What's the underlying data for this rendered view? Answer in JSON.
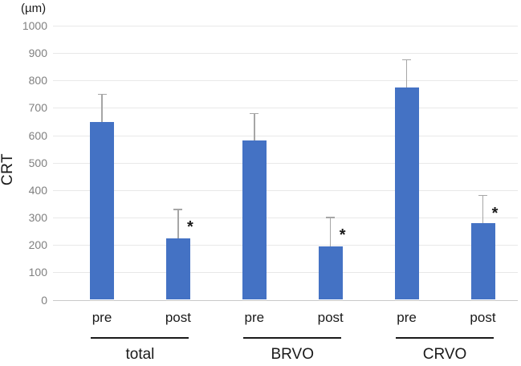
{
  "chart_data": {
    "type": "bar",
    "title": "",
    "unit": "(µm)",
    "ylabel": "CRT",
    "xlabel": "",
    "ylim": [
      0,
      1000
    ],
    "yticks": [
      0,
      100,
      200,
      300,
      400,
      500,
      600,
      700,
      800,
      900,
      1000
    ],
    "grid": true,
    "legend": false,
    "bar_color": "#4472C4",
    "error_bar_color": "#A6A6A6",
    "gridline_color": "#E8E8E8",
    "axis_line_color": "#C9C9C9",
    "tick_label_color": "#808080",
    "significance_marker": "*",
    "groups": [
      {
        "label": "total",
        "bars": [
          {
            "label": "pre",
            "value": 650,
            "error_upper": 100,
            "significant": false
          },
          {
            "label": "post",
            "value": 225,
            "error_upper": 105,
            "significant": true
          }
        ]
      },
      {
        "label": "BRVO",
        "bars": [
          {
            "label": "pre",
            "value": 580,
            "error_upper": 100,
            "significant": false
          },
          {
            "label": "post",
            "value": 195,
            "error_upper": 105,
            "significant": true
          }
        ]
      },
      {
        "label": "CRVO",
        "bars": [
          {
            "label": "pre",
            "value": 775,
            "error_upper": 100,
            "significant": false
          },
          {
            "label": "post",
            "value": 280,
            "error_upper": 100,
            "significant": true
          }
        ]
      }
    ]
  }
}
